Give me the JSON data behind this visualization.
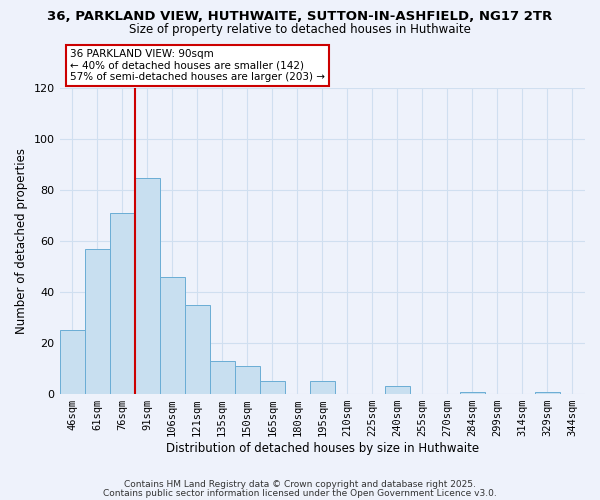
{
  "title1": "36, PARKLAND VIEW, HUTHWAITE, SUTTON-IN-ASHFIELD, NG17 2TR",
  "title2": "Size of property relative to detached houses in Huthwaite",
  "xlabel": "Distribution of detached houses by size in Huthwaite",
  "ylabel": "Number of detached properties",
  "categories": [
    "46sqm",
    "61sqm",
    "76sqm",
    "91sqm",
    "106sqm",
    "121sqm",
    "135sqm",
    "150sqm",
    "165sqm",
    "180sqm",
    "195sqm",
    "210sqm",
    "225sqm",
    "240sqm",
    "255sqm",
    "270sqm",
    "284sqm",
    "299sqm",
    "314sqm",
    "329sqm",
    "344sqm"
  ],
  "values": [
    25,
    57,
    71,
    85,
    46,
    35,
    13,
    11,
    5,
    0,
    5,
    0,
    0,
    3,
    0,
    0,
    1,
    0,
    0,
    1,
    0
  ],
  "bar_color": "#c8dff0",
  "bar_edge_color": "#6aadd5",
  "vline_x_index": 3,
  "vline_color": "#cc0000",
  "ylim": [
    0,
    120
  ],
  "yticks": [
    0,
    20,
    40,
    60,
    80,
    100,
    120
  ],
  "annotation_title": "36 PARKLAND VIEW: 90sqm",
  "annotation_line1": "← 40% of detached houses are smaller (142)",
  "annotation_line2": "57% of semi-detached houses are larger (203) →",
  "annotation_box_color": "#ffffff",
  "annotation_box_edge_color": "#cc0000",
  "grid_color": "#d0dff0",
  "background_color": "#eef2fb",
  "plot_bg_color": "#eef2fb",
  "footnote1": "Contains HM Land Registry data © Crown copyright and database right 2025.",
  "footnote2": "Contains public sector information licensed under the Open Government Licence v3.0."
}
